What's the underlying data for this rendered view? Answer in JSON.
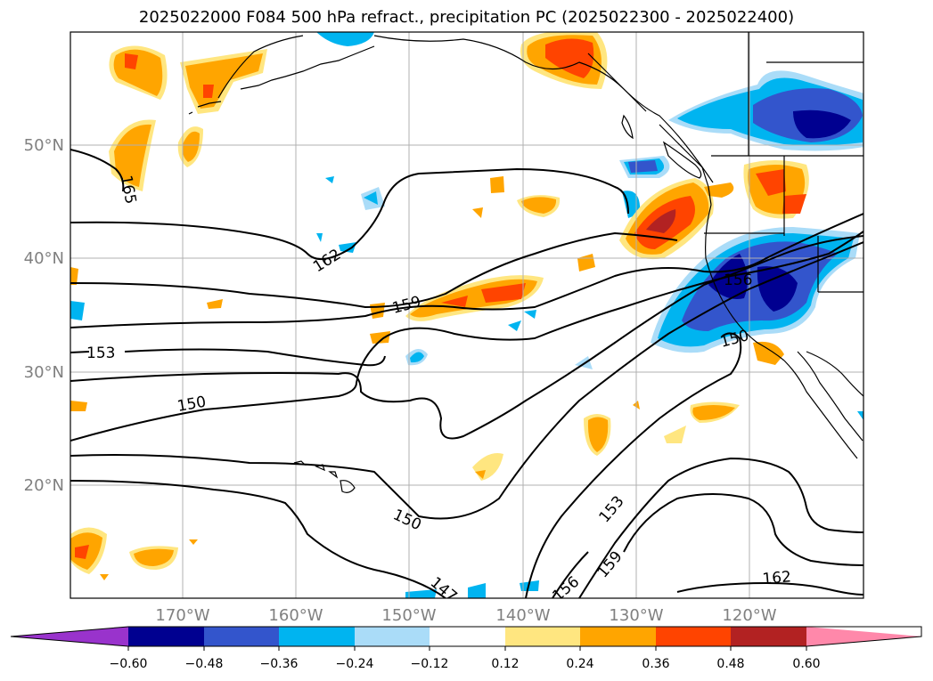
{
  "title": "2025022000 F084 500 hPa refract., precipitation PC (2025022300 - 2025022400)",
  "map": {
    "lat_labels": [
      "50°N",
      "40°N",
      "30°N",
      "20°N"
    ],
    "lon_labels": [
      "170°W",
      "160°W",
      "150°W",
      "140°W",
      "130°W",
      "120°W"
    ],
    "contour_labels": [
      "165",
      "162",
      "159",
      "156",
      "153",
      "150",
      "150",
      "150",
      "153",
      "159",
      "162",
      "147",
      "156"
    ]
  },
  "colorbar": {
    "ticks": [
      "−0.60",
      "−0.48",
      "−0.36",
      "−0.24",
      "−0.12",
      "0.12",
      "0.24",
      "0.36",
      "0.48",
      "0.60"
    ],
    "colors": [
      "#9933cc",
      "#000090",
      "#3355cc",
      "#00b4f0",
      "#aadcf8",
      "#ffffff",
      "#ffe680",
      "#ffa500",
      "#ff4400",
      "#b22222",
      "#ff88aa"
    ]
  }
}
